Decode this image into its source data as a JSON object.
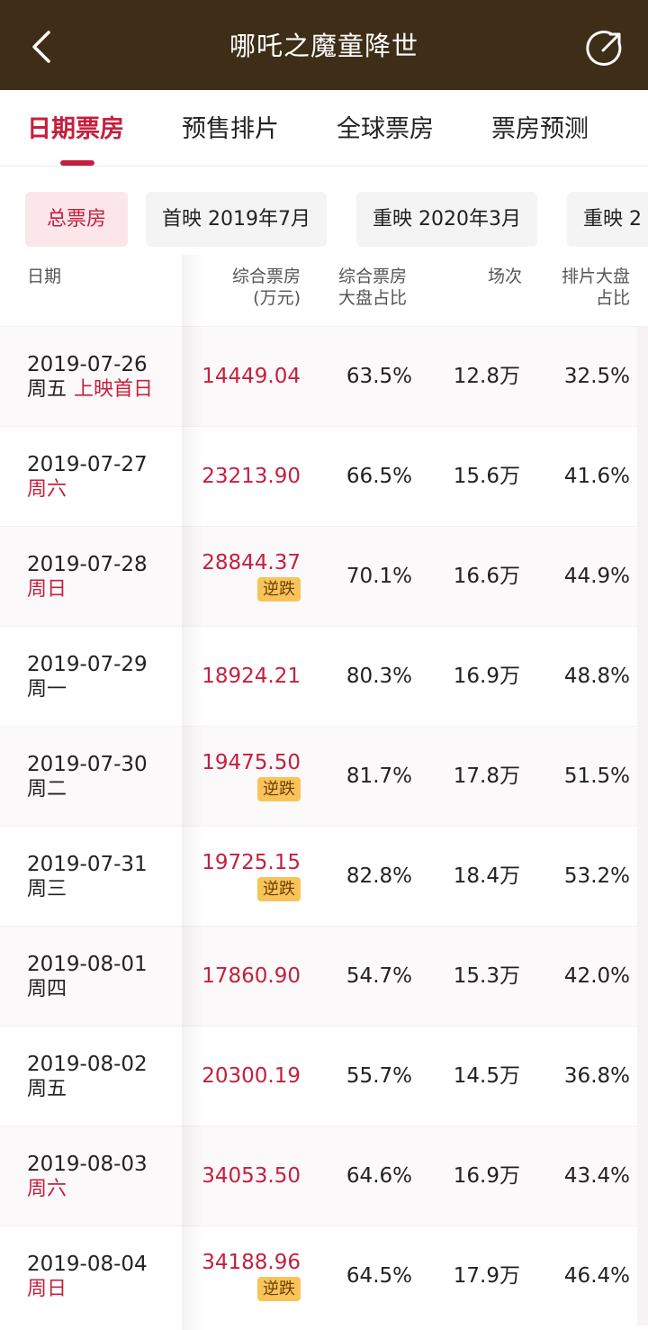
{
  "header": {
    "title": "哪吒之魔童降世"
  },
  "tabs": [
    {
      "label": "日期票房",
      "active": true
    },
    {
      "label": "预售排片",
      "active": false
    },
    {
      "label": "全球票房",
      "active": false
    },
    {
      "label": "票房预测",
      "active": false
    }
  ],
  "chips": [
    {
      "label": "总票房",
      "active": true
    },
    {
      "label": "首映 2019年7月",
      "active": false
    },
    {
      "label": "重映 2020年3月",
      "active": false
    },
    {
      "label": "重映 2",
      "active": false
    }
  ],
  "table": {
    "headers": {
      "date": "日期",
      "box_1": "综合票房",
      "box_2": "(万元)",
      "share_1": "综合票房",
      "share_2": "大盘占比",
      "shows": "场次",
      "slot_1": "排片大盘",
      "slot_2": "占比"
    },
    "rows": [
      {
        "date": "2019-07-26",
        "weekday": "周五",
        "tag": "上映首日",
        "box": "14449.04",
        "share": "63.5%",
        "shows": "12.8万",
        "slot": "32.5%"
      },
      {
        "date": "2019-07-27",
        "weekday": "周六",
        "weekend": true,
        "box": "23213.90",
        "share": "66.5%",
        "shows": "15.6万",
        "slot": "41.6%"
      },
      {
        "date": "2019-07-28",
        "weekday": "周日",
        "weekend": true,
        "box": "28844.37",
        "badge": "逆跌",
        "share": "70.1%",
        "shows": "16.6万",
        "slot": "44.9%"
      },
      {
        "date": "2019-07-29",
        "weekday": "周一",
        "box": "18924.21",
        "share": "80.3%",
        "shows": "16.9万",
        "slot": "48.8%"
      },
      {
        "date": "2019-07-30",
        "weekday": "周二",
        "box": "19475.50",
        "badge": "逆跌",
        "share": "81.7%",
        "shows": "17.8万",
        "slot": "51.5%"
      },
      {
        "date": "2019-07-31",
        "weekday": "周三",
        "box": "19725.15",
        "badge": "逆跌",
        "share": "82.8%",
        "shows": "18.4万",
        "slot": "53.2%"
      },
      {
        "date": "2019-08-01",
        "weekday": "周四",
        "box": "17860.90",
        "share": "54.7%",
        "shows": "15.3万",
        "slot": "42.0%"
      },
      {
        "date": "2019-08-02",
        "weekday": "周五",
        "box": "20300.19",
        "share": "55.7%",
        "shows": "14.5万",
        "slot": "36.8%"
      },
      {
        "date": "2019-08-03",
        "weekday": "周六",
        "weekend": true,
        "box": "34053.50",
        "share": "64.6%",
        "shows": "16.9万",
        "slot": "43.4%"
      },
      {
        "date": "2019-08-04",
        "weekday": "周日",
        "weekend": true,
        "box": "34188.96",
        "badge": "逆跌",
        "share": "64.5%",
        "shows": "17.9万",
        "slot": "46.4%"
      }
    ]
  },
  "colors": {
    "header_bg": "#3f2e17",
    "accent": "#c4203e",
    "badge_bg": "#f8c45a"
  }
}
